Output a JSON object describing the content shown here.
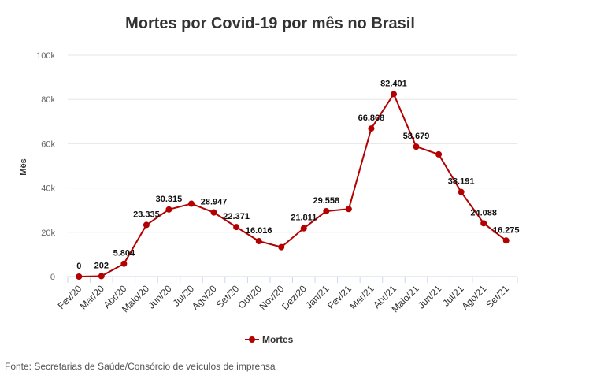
{
  "chart_data": {
    "type": "line",
    "title": "Mortes por Covid-19 por mês no Brasil",
    "ylabel": "Mês",
    "xlabel": "",
    "ylim": [
      0,
      100000
    ],
    "y_ticks": [
      0,
      20000,
      40000,
      60000,
      80000,
      100000
    ],
    "y_tick_labels": [
      "0",
      "20k",
      "40k",
      "60k",
      "80k",
      "100k"
    ],
    "grid": true,
    "legend": "bottom-center",
    "categories": [
      "Fev/20",
      "Mar/20",
      "Abr/20",
      "Maio/20",
      "Jun/20",
      "Jul/20",
      "Ago/20",
      "Set/20",
      "Out/20",
      "Nov/20",
      "Dez/20",
      "Jan/21",
      "Fev/21",
      "Mar/21",
      "Abr/21",
      "Maio/21",
      "Jun/21",
      "Jul/21",
      "Ago/21",
      "Set/21"
    ],
    "series": [
      {
        "name": "Mortes",
        "color": "#b30000",
        "values": [
          0,
          202,
          5804,
          23335,
          30315,
          32900,
          28947,
          22371,
          16016,
          13300,
          21811,
          29558,
          30500,
          66868,
          82401,
          58679,
          55200,
          38191,
          24088,
          16275
        ],
        "labels": [
          "0",
          "202",
          "5.804",
          "23.335",
          "30.315",
          "",
          "28.947",
          "22.371",
          "16.016",
          "",
          "21.811",
          "29.558",
          "",
          "66.868",
          "82.401",
          "58.679",
          "",
          "38.191",
          "24.088",
          "16.275"
        ]
      }
    ]
  },
  "source": "Fonte: Secretarias de Saúde/Consórcio de veículos de imprensa"
}
